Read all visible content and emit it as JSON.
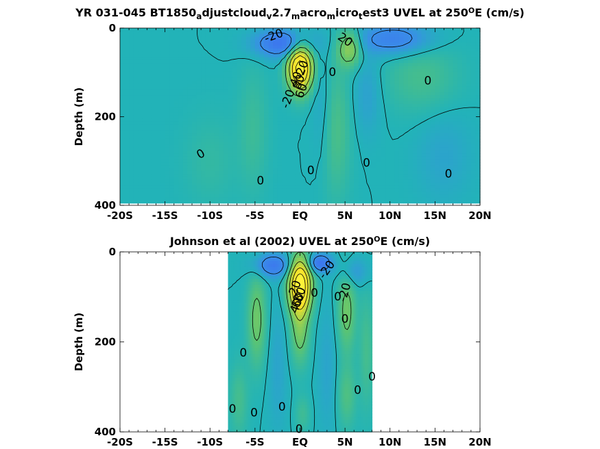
{
  "figure": {
    "colors": {
      "background_field": "#22b3b8",
      "westward_flow": "#3a8ee8",
      "strong_westward": "#3d6ff0",
      "weak_eastward": "#5cc472",
      "moderate_eastward": "#a6d14b",
      "core_high": "#f5e02a",
      "core_peak": "#fff23a"
    }
  },
  "chart_data": [
    {
      "type": "heatmap",
      "title": "YR 031-045 BT1850",
      "title_parts": [
        {
          "text": "YR 031-045 BT1850",
          "style": "normal"
        },
        {
          "text": "a",
          "style": "sub"
        },
        {
          "text": "djustcloud",
          "style": "normal"
        },
        {
          "text": "v",
          "style": "sub"
        },
        {
          "text": "2.7",
          "style": "normal"
        },
        {
          "text": "m",
          "style": "sub"
        },
        {
          "text": "acro",
          "style": "normal"
        },
        {
          "text": "m",
          "style": "sub"
        },
        {
          "text": "icro",
          "style": "normal"
        },
        {
          "text": "t",
          "style": "sub"
        },
        {
          "text": "est3 UVEL at 250",
          "style": "normal"
        },
        {
          "text": "O",
          "style": "sup"
        },
        {
          "text": "E (cm/s)",
          "style": "normal"
        }
      ],
      "xlabel": "",
      "ylabel": "Depth (m)",
      "xlim": [
        -20,
        20
      ],
      "ylim": [
        400,
        0
      ],
      "x_ticks": [
        -20,
        -15,
        -10,
        -5,
        0,
        5,
        10,
        15,
        20
      ],
      "x_tick_labels": [
        "-20S",
        "-15S",
        "-10S",
        "-5S",
        "EQ",
        "5N",
        "10N",
        "15N",
        "20N"
      ],
      "y_ticks": [
        0,
        200,
        400
      ],
      "y_tick_labels": [
        "0",
        "200",
        "400"
      ],
      "data_extent": {
        "lat": [
          -20,
          20
        ],
        "depth": [
          0,
          395
        ]
      },
      "features": [
        {
          "kind": "jet",
          "lat": 0,
          "depth": 90,
          "lat_half_width": 1.3,
          "depth_half_width": 52,
          "peak": 95
        },
        {
          "kind": "jet",
          "lat": 5.5,
          "depth": 45,
          "lat_half_width": 1.3,
          "depth_half_width": 40,
          "peak": 35
        },
        {
          "kind": "jet",
          "lat": 4.0,
          "depth": 230,
          "lat_half_width": 1.6,
          "depth_half_width": 150,
          "peak": 14
        },
        {
          "kind": "jet",
          "lat": 13.5,
          "depth": 110,
          "lat_half_width": 4,
          "depth_half_width": 80,
          "peak": 12
        },
        {
          "kind": "jet",
          "lat": -5.2,
          "depth": 230,
          "lat_half_width": 1.6,
          "depth_half_width": 140,
          "peak": 9
        },
        {
          "kind": "jet",
          "lat": -10,
          "depth": 300,
          "lat_half_width": 2.8,
          "depth_half_width": 100,
          "peak": 6
        },
        {
          "kind": "jet",
          "lat": -2,
          "depth": 35,
          "lat_half_width": 3,
          "depth_half_width": 30,
          "peak": -40
        },
        {
          "kind": "jet",
          "lat": 10.5,
          "depth": 25,
          "lat_half_width": 4,
          "depth_half_width": 35,
          "peak": -30
        },
        {
          "kind": "jet",
          "lat": 7.5,
          "depth": 150,
          "lat_half_width": 1.5,
          "depth_half_width": 90,
          "peak": -10
        },
        {
          "kind": "jet",
          "lat": 2.5,
          "depth": 180,
          "lat_half_width": 1.1,
          "depth_half_width": 130,
          "peak": -8
        },
        {
          "kind": "jet",
          "lat": 16,
          "depth": 290,
          "lat_half_width": 3,
          "depth_half_width": 100,
          "peak": -8
        }
      ],
      "contour_labels": [
        {
          "text": "-20",
          "lat": -2.9,
          "depth": 18,
          "angle": -20
        },
        {
          "text": "20",
          "lat": 5.0,
          "depth": 27,
          "angle": 35
        },
        {
          "text": "0",
          "lat": 3.6,
          "depth": 100,
          "angle": 0
        },
        {
          "text": "0",
          "lat": 14.2,
          "depth": 120,
          "angle": 0
        },
        {
          "text": "0",
          "lat": -11.0,
          "depth": 285,
          "angle": -30
        },
        {
          "text": "0",
          "lat": -4.4,
          "depth": 345,
          "angle": 0
        },
        {
          "text": "0",
          "lat": 1.2,
          "depth": 322,
          "angle": 0
        },
        {
          "text": "0",
          "lat": 7.4,
          "depth": 305,
          "angle": 0
        },
        {
          "text": "0",
          "lat": 16.5,
          "depth": 330,
          "angle": 0
        },
        {
          "text": "-20",
          "lat": -1.3,
          "depth": 160,
          "angle": -70
        },
        {
          "text": "80",
          "lat": -0.1,
          "depth": 122,
          "angle": -70
        },
        {
          "text": "60",
          "lat": 0.2,
          "depth": 142,
          "angle": -70
        },
        {
          "text": "40",
          "lat": -0.4,
          "depth": 115,
          "angle": -70
        },
        {
          "text": "20",
          "lat": 0.3,
          "depth": 90,
          "angle": -70
        }
      ]
    },
    {
      "type": "heatmap",
      "title": "Johnson et al (2002) UVEL at 250",
      "title_parts": [
        {
          "text": "Johnson et al (2002) UVEL at 250",
          "style": "normal"
        },
        {
          "text": "O",
          "style": "sup"
        },
        {
          "text": "E (cm/s)",
          "style": "normal"
        }
      ],
      "xlabel": "",
      "ylabel": "Depth (m)",
      "xlim": [
        -20,
        20
      ],
      "ylim": [
        400,
        0
      ],
      "x_ticks": [
        -20,
        -15,
        -10,
        -5,
        0,
        5,
        10,
        15,
        20
      ],
      "x_tick_labels": [
        "-20S",
        "-15S",
        "-10S",
        "-5S",
        "EQ",
        "5N",
        "10N",
        "15N",
        "20N"
      ],
      "y_ticks": [
        0,
        200,
        400
      ],
      "y_tick_labels": [
        "0",
        "200",
        "400"
      ],
      "data_extent": {
        "lat": [
          -8,
          8
        ],
        "depth": [
          0,
          400
        ]
      },
      "features": [
        {
          "kind": "jet",
          "lat": 0,
          "depth": 75,
          "lat_half_width": 1.2,
          "depth_half_width": 60,
          "peak": 100
        },
        {
          "kind": "jet",
          "lat": 0,
          "depth": 180,
          "lat_half_width": 1.0,
          "depth_half_width": 70,
          "peak": 25
        },
        {
          "kind": "jet",
          "lat": 5.2,
          "depth": 130,
          "lat_half_width": 1.0,
          "depth_half_width": 90,
          "peak": 25
        },
        {
          "kind": "jet",
          "lat": 5.2,
          "depth": 320,
          "lat_half_width": 1.0,
          "depth_half_width": 70,
          "peak": 15
        },
        {
          "kind": "jet",
          "lat": -4.8,
          "depth": 150,
          "lat_half_width": 1.0,
          "depth_half_width": 100,
          "peak": 25
        },
        {
          "kind": "jet",
          "lat": -6.8,
          "depth": 330,
          "lat_half_width": 1.0,
          "depth_half_width": 80,
          "peak": 12
        },
        {
          "kind": "jet",
          "lat": 7.4,
          "depth": 220,
          "lat_half_width": 0.8,
          "depth_half_width": 130,
          "peak": 12
        },
        {
          "kind": "jet",
          "lat": 0.3,
          "depth": 360,
          "lat_half_width": 0.8,
          "depth_half_width": 40,
          "peak": 10
        },
        {
          "kind": "jet",
          "lat": -3,
          "depth": 30,
          "lat_half_width": 2,
          "depth_half_width": 25,
          "peak": -35
        },
        {
          "kind": "jet",
          "lat": 2.2,
          "depth": 25,
          "lat_half_width": 1.3,
          "depth_half_width": 20,
          "peak": -40
        },
        {
          "kind": "jet",
          "lat": 6.0,
          "depth": 45,
          "lat_half_width": 1.5,
          "depth_half_width": 30,
          "peak": -15
        },
        {
          "kind": "jet",
          "lat": 3.0,
          "depth": 260,
          "lat_half_width": 1.0,
          "depth_half_width": 140,
          "peak": -8
        },
        {
          "kind": "jet",
          "lat": -2.5,
          "depth": 260,
          "lat_half_width": 1.0,
          "depth_half_width": 140,
          "peak": -8
        }
      ],
      "contour_labels": [
        {
          "text": "-20",
          "lat": 3.0,
          "depth": 40,
          "angle": -55
        },
        {
          "text": "-20",
          "lat": 5.0,
          "depth": 90,
          "angle": -75
        },
        {
          "text": "0",
          "lat": 1.6,
          "depth": 92,
          "angle": 0
        },
        {
          "text": "0",
          "lat": 4.2,
          "depth": 100,
          "angle": 0
        },
        {
          "text": "0",
          "lat": -6.3,
          "depth": 225,
          "angle": 0
        },
        {
          "text": "0",
          "lat": 8.0,
          "depth": 278,
          "angle": 0
        },
        {
          "text": "0",
          "lat": 6.4,
          "depth": 308,
          "angle": 0
        },
        {
          "text": "0",
          "lat": -7.5,
          "depth": 350,
          "angle": 0
        },
        {
          "text": "0",
          "lat": -5.1,
          "depth": 358,
          "angle": 0
        },
        {
          "text": "0",
          "lat": -2.0,
          "depth": 345,
          "angle": 0
        },
        {
          "text": "0",
          "lat": -0.1,
          "depth": 395,
          "angle": 0
        },
        {
          "text": "0",
          "lat": 5.0,
          "depth": 150,
          "angle": 0
        },
        {
          "text": "80",
          "lat": 0.0,
          "depth": 95,
          "angle": -70
        },
        {
          "text": "60",
          "lat": -0.2,
          "depth": 108,
          "angle": -70
        },
        {
          "text": "40",
          "lat": -0.4,
          "depth": 120,
          "angle": -70
        },
        {
          "text": "20",
          "lat": -0.5,
          "depth": 80,
          "angle": -70
        }
      ]
    }
  ]
}
